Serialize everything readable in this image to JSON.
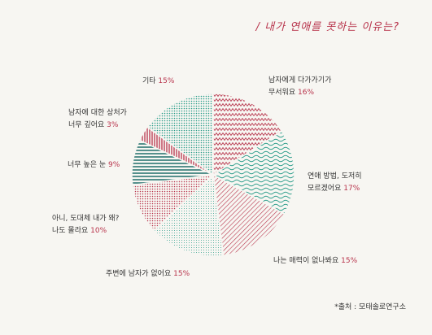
{
  "title": "/ 내가 연애를 못하는 이유는?",
  "source": "*출처 : 모태솔로연구소",
  "chart_data": {
    "type": "pie",
    "slices": [
      {
        "label_lines": [
          "남자에게 다가가기가",
          "무서워요"
        ],
        "value": 16,
        "pct_text": "16%",
        "color": "#b8344c",
        "pattern": "zigzag"
      },
      {
        "label_lines": [
          "연애 방법, 도저히",
          "모르겠어요"
        ],
        "value": 17,
        "pct_text": "17%",
        "color": "#2a9d8a",
        "pattern": "waves"
      },
      {
        "label_lines": [
          "나는 매력이 없나봐요"
        ],
        "value": 15,
        "pct_text": "15%",
        "color": "#b8344c",
        "pattern": "diagonal"
      },
      {
        "label_lines": [
          "주변에 남자가 없어요"
        ],
        "value": 15,
        "pct_text": "15%",
        "color": "#2a9d8a",
        "pattern": "finedots"
      },
      {
        "label_lines": [
          "아니, 도대체 내가 왜?",
          "나도 몰라요"
        ],
        "value": 10,
        "pct_text": "10%",
        "color": "#b8344c",
        "pattern": "dots"
      },
      {
        "label_lines": [
          "너무 높은 눈"
        ],
        "value": 9,
        "pct_text": "9%",
        "color": "#1f6e6a",
        "pattern": "hstripes"
      },
      {
        "label_lines": [
          "남자에 대한 상처가",
          "너무 깊어요"
        ],
        "value": 3,
        "pct_text": "3%",
        "color": "#b8344c",
        "pattern": "vstripes"
      },
      {
        "label_lines": [
          "기타"
        ],
        "value": 15,
        "pct_text": "15%",
        "color": "#2a9d8a",
        "pattern": "dots"
      }
    ]
  }
}
